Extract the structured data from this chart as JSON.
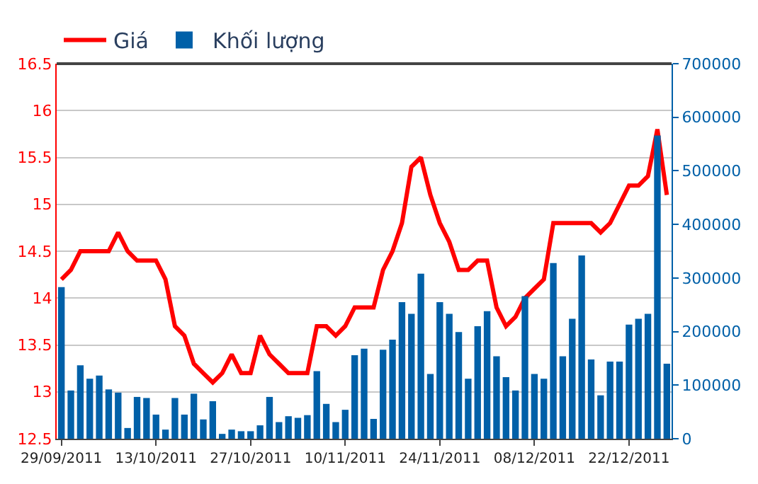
{
  "chart_data": {
    "type": "line",
    "categories": [
      "29/09/2011",
      null,
      null,
      null,
      null,
      null,
      null,
      null,
      null,
      null,
      "13/10/2011",
      null,
      null,
      null,
      null,
      null,
      null,
      null,
      null,
      null,
      "27/10/2011",
      null,
      null,
      null,
      null,
      null,
      null,
      null,
      null,
      null,
      "10/11/2011",
      null,
      null,
      null,
      null,
      null,
      null,
      null,
      null,
      null,
      "24/11/2011",
      null,
      null,
      null,
      null,
      null,
      null,
      null,
      null,
      null,
      "08/12/2011",
      null,
      null,
      null,
      null,
      null,
      null,
      null,
      null,
      null,
      "22/12/2011",
      null,
      null,
      null,
      null
    ],
    "series": [
      {
        "name": "Khối lượng",
        "type": "bar",
        "axis": "y2",
        "color": "#0060a8",
        "values": [
          283000,
          90000,
          137000,
          112000,
          118000,
          92000,
          86000,
          20000,
          78000,
          76000,
          45000,
          17000,
          76000,
          45000,
          84000,
          36000,
          70000,
          9000,
          17000,
          14000,
          14000,
          25000,
          78000,
          31000,
          42000,
          39000,
          44000,
          126000,
          65000,
          31000,
          54000,
          156000,
          168000,
          37000,
          166000,
          185000,
          255000,
          233000,
          308000,
          121000,
          255000,
          233000,
          199000,
          112000,
          210000,
          238000,
          154000,
          115000,
          90000,
          266000,
          121000,
          112000,
          328000,
          154000,
          224000,
          342000,
          148000,
          81000,
          144000,
          144000,
          213000,
          224000,
          233000,
          566000,
          140000
        ]
      },
      {
        "name": "Giá",
        "color": "#ff0000",
        "values": [
          14.2,
          14.3,
          14.5,
          14.5,
          14.5,
          14.5,
          14.7,
          14.5,
          14.4,
          14.4,
          14.4,
          14.2,
          13.7,
          13.6,
          13.3,
          13.2,
          13.1,
          13.2,
          13.4,
          13.2,
          13.2,
          13.6,
          13.4,
          13.3,
          13.2,
          13.2,
          13.2,
          13.7,
          13.7,
          13.6,
          13.7,
          13.9,
          13.9,
          13.9,
          14.3,
          14.5,
          14.8,
          15.4,
          15.5,
          15.1,
          14.8,
          14.6,
          14.3,
          14.3,
          14.4,
          14.4,
          13.9,
          13.7,
          13.8,
          14.0,
          14.1,
          14.2,
          14.8,
          14.8,
          14.8,
          14.8,
          14.8,
          14.7,
          14.8,
          15.0,
          15.2,
          15.2,
          15.3,
          15.8,
          15.1
        ]
      }
    ],
    "ylim": [
      12.5,
      16.5
    ],
    "yticks": [
      12.5,
      13,
      13.5,
      14,
      14.5,
      15,
      15.5,
      16,
      16.5
    ],
    "y2lim": [
      0,
      700000
    ],
    "y2ticks": [
      0,
      100000,
      200000,
      300000,
      400000,
      500000,
      600000,
      700000
    ],
    "grid": "y",
    "legend": "top left",
    "marker": "none",
    "line_style": "solid"
  }
}
